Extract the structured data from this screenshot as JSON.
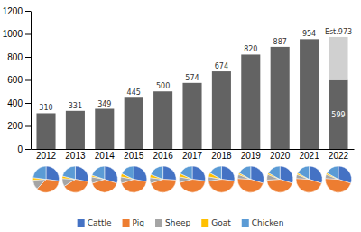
{
  "chart_data": [
    {
      "type": "bar",
      "stacked": true,
      "grid": false,
      "categories": [
        "2012",
        "2013",
        "2014",
        "2015",
        "2016",
        "2017",
        "2018",
        "2019",
        "2020",
        "2021",
        "2022"
      ],
      "series": [
        {
          "color": "#636363",
          "data_labels": true,
          "values": [
            310,
            331,
            349,
            445,
            500,
            574,
            674,
            820,
            887,
            954,
            599
          ]
        },
        {
          "color": "#d0d0d0",
          "values": [
            null,
            null,
            null,
            null,
            null,
            null,
            null,
            null,
            null,
            null,
            374
          ]
        }
      ],
      "annotations": [
        {
          "text": "Est.973",
          "x": "2022",
          "y": 973
        }
      ],
      "ylim": [
        0,
        1200
      ],
      "yticks": [
        0,
        200,
        400,
        600,
        800,
        1000,
        1200
      ]
    },
    {
      "type": "pie",
      "categories": [
        "Cattle",
        "Pig",
        "Sheep",
        "Goat",
        "Chicken"
      ],
      "colors": [
        "#4472c4",
        "#ed7d31",
        "#a5a5a5",
        "#ffc000",
        "#5b9bd5"
      ],
      "legend": "bottom",
      "series": [
        {
          "values": [
            0.27,
            0.35,
            0.12,
            0.03,
            0.23
          ]
        },
        {
          "values": [
            0.28,
            0.38,
            0.1,
            0.03,
            0.21
          ]
        },
        {
          "values": [
            0.3,
            0.4,
            0.08,
            0.02,
            0.2
          ]
        },
        {
          "values": [
            0.28,
            0.42,
            0.08,
            0.04,
            0.18
          ]
        },
        {
          "values": [
            0.26,
            0.44,
            0.07,
            0.04,
            0.19
          ]
        },
        {
          "values": [
            0.27,
            0.44,
            0.07,
            0.04,
            0.18
          ]
        },
        {
          "values": [
            0.27,
            0.46,
            0.05,
            0.05,
            0.17
          ]
        },
        {
          "values": [
            0.3,
            0.46,
            0.05,
            0.02,
            0.17
          ]
        },
        {
          "values": [
            0.3,
            0.44,
            0.07,
            0.02,
            0.17
          ]
        },
        {
          "values": [
            0.3,
            0.46,
            0.05,
            0.02,
            0.17
          ]
        },
        {
          "values": [
            0.3,
            0.46,
            0.05,
            0.02,
            0.17
          ]
        }
      ]
    }
  ]
}
